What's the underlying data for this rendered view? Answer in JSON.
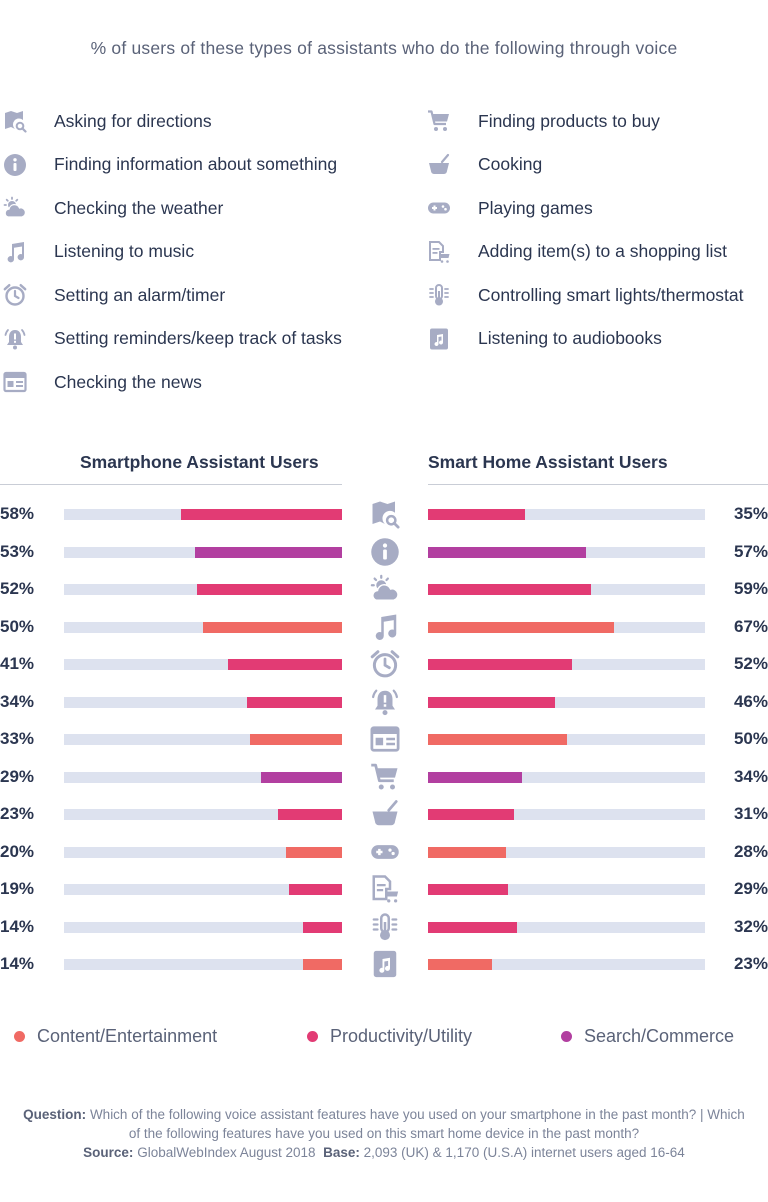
{
  "title": "% of users of these types of assistants who do the following through voice",
  "colors": {
    "content": "#f06a64",
    "productivity": "#e23b74",
    "search": "#b23fa0",
    "track": "#dde2ef",
    "icon": "#a7acc4"
  },
  "key": {
    "left": [
      {
        "icon": "map-search-icon",
        "label": "Asking for directions"
      },
      {
        "icon": "info-icon",
        "label": "Finding information about something"
      },
      {
        "icon": "weather-icon",
        "label": "Checking the weather"
      },
      {
        "icon": "music-note-icon",
        "label": "Listening to music"
      },
      {
        "icon": "alarm-clock-icon",
        "label": "Setting an alarm/timer"
      },
      {
        "icon": "bell-alert-icon",
        "label": "Setting reminders/keep track of tasks"
      },
      {
        "icon": "newspaper-icon",
        "label": "Checking the news"
      }
    ],
    "right": [
      {
        "icon": "cart-icon",
        "label": "Finding products to buy"
      },
      {
        "icon": "cooking-pot-icon",
        "label": "Cooking"
      },
      {
        "icon": "gamepad-icon",
        "label": "Playing games"
      },
      {
        "icon": "shopping-list-icon",
        "label": "Adding item(s) to a shopping list"
      },
      {
        "icon": "thermostat-icon",
        "label": "Controlling smart lights/thermostat"
      },
      {
        "icon": "audiobook-icon",
        "label": "Listening to audiobooks"
      }
    ]
  },
  "chart_data": {
    "type": "bar",
    "xlim": [
      0,
      100
    ],
    "titles": {
      "left": "Smartphone Assistant Users",
      "right": "Smart Home Assistant Users"
    },
    "categories": [
      "Asking for directions",
      "Finding information about something",
      "Checking the weather",
      "Listening to music",
      "Setting an alarm/timer",
      "Setting reminders/keep track of tasks",
      "Checking the news",
      "Finding products to buy",
      "Cooking",
      "Playing games",
      "Adding item(s) to a shopping list",
      "Controlling smart lights/thermostat",
      "Listening to audiobooks"
    ],
    "icons": [
      "map-search-icon",
      "info-icon",
      "weather-icon",
      "music-note-icon",
      "alarm-clock-icon",
      "bell-alert-icon",
      "newspaper-icon",
      "cart-icon",
      "cooking-pot-icon",
      "gamepad-icon",
      "shopping-list-icon",
      "thermostat-icon",
      "audiobook-icon"
    ],
    "type_group": [
      "productivity",
      "search",
      "productivity",
      "content",
      "productivity",
      "productivity",
      "content",
      "search",
      "productivity",
      "content",
      "productivity",
      "productivity",
      "content"
    ],
    "smartphone": {
      "values": [
        58,
        53,
        52,
        50,
        41,
        34,
        33,
        29,
        23,
        20,
        19,
        14,
        14
      ],
      "labels": [
        "58%",
        "53%",
        "52%",
        "50%",
        "41%",
        "34%",
        "33%",
        "29%",
        "23%",
        "20%",
        "19%",
        "14%",
        "14%"
      ]
    },
    "smart_home": {
      "values": [
        35,
        57,
        59,
        67,
        52,
        46,
        50,
        34,
        31,
        28,
        29,
        32,
        23
      ],
      "labels": [
        "35%",
        "57%",
        "59%",
        "67%",
        "52%",
        "46%",
        "50%",
        "34%",
        "31%",
        "28%",
        "29%",
        "32%",
        "23%"
      ]
    },
    "legend": [
      {
        "key": "content",
        "label": "Content/Entertainment"
      },
      {
        "key": "productivity",
        "label": "Productivity/Utility"
      },
      {
        "key": "search",
        "label": "Search/Commerce"
      }
    ]
  },
  "footer": {
    "question_label": "Question:",
    "question_text": "Which of the following voice assistant features have you used on your smartphone in the past month? | Which of the following features have you used on this smart home device in the past month?",
    "source_label": "Source:",
    "source_text": "GlobalWebIndex August 2018",
    "base_label": "Base:",
    "base_text": "2,093 (UK) & 1,170 (U.S.A) internet users aged 16-64"
  }
}
